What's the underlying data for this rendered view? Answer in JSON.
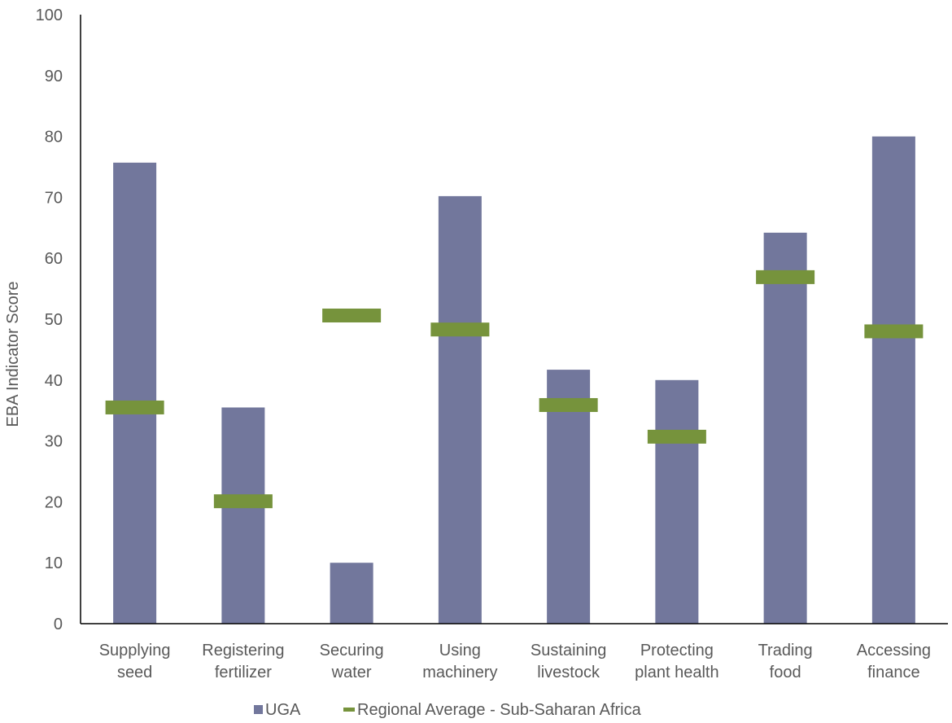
{
  "chart_data": {
    "type": "bar",
    "title": "",
    "xlabel": "",
    "ylabel": "EBA Indicator Score",
    "ylim": [
      0,
      100
    ],
    "yticks": [
      0,
      10,
      20,
      30,
      40,
      50,
      60,
      70,
      80,
      90,
      100
    ],
    "grid": false,
    "legend_position": "bottom",
    "categories": [
      [
        "Supplying",
        "seed"
      ],
      [
        "Registering",
        "fertilizer"
      ],
      [
        "Securing",
        "water"
      ],
      [
        "Using",
        "machinery"
      ],
      [
        "Sustaining",
        "livestock"
      ],
      [
        "Protecting",
        "plant health"
      ],
      [
        "Trading",
        "food"
      ],
      [
        "Accessing",
        "finance"
      ]
    ],
    "series": [
      {
        "name": "UGA",
        "type": "bar",
        "color": "#72779c",
        "values": [
          75.7,
          35.5,
          10.0,
          70.2,
          41.7,
          40.0,
          64.2,
          80.0
        ]
      },
      {
        "name": "Regional Average - Sub-Saharan Africa",
        "type": "marker",
        "color": "#76933c",
        "values": [
          35.5,
          20.1,
          50.6,
          48.3,
          35.9,
          30.7,
          56.9,
          48.0
        ]
      }
    ]
  }
}
